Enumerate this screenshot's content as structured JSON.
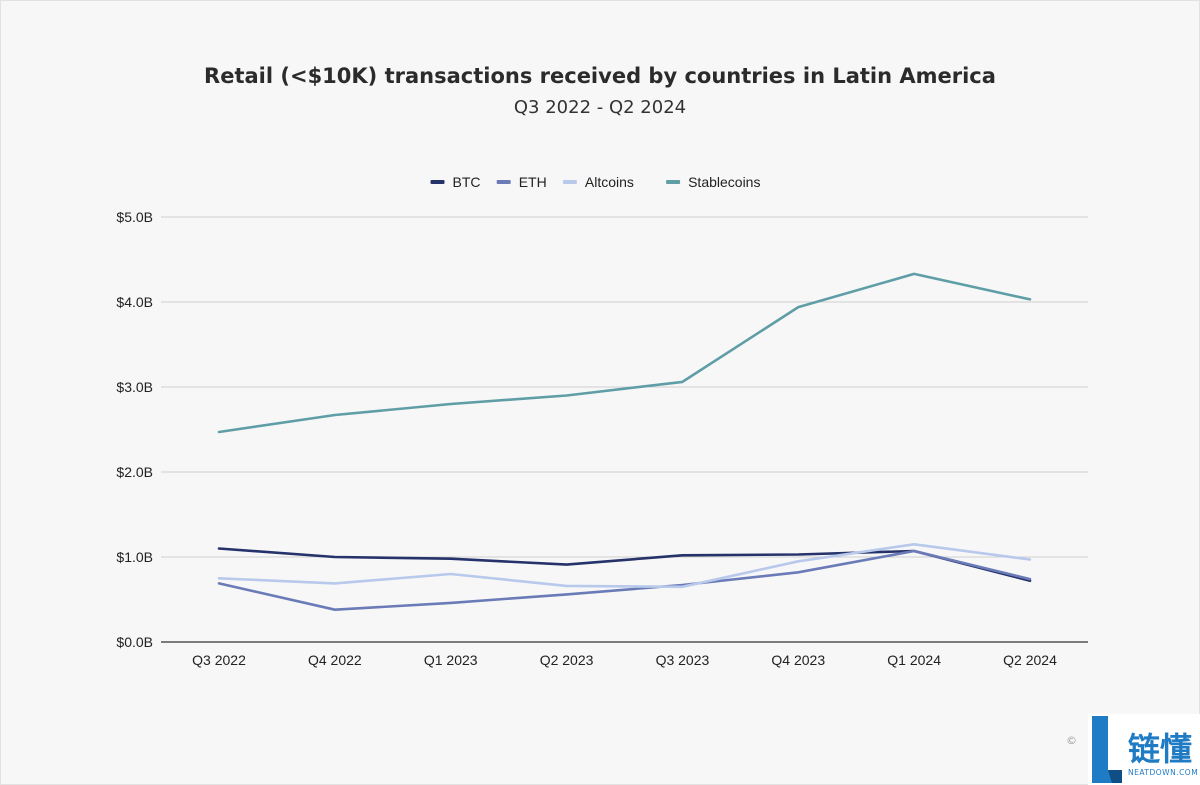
{
  "chart_data": {
    "type": "line",
    "title": "Retail (<$10K) transactions received by countries in Latin America",
    "subtitle": "Q3 2022 - Q2 2024",
    "categories": [
      "Q3 2022",
      "Q4 2022",
      "Q1 2023",
      "Q2 2023",
      "Q3 2023",
      "Q4 2023",
      "Q1 2024",
      "Q2 2024"
    ],
    "yaxis": {
      "min": 0,
      "max": 5,
      "ticks": [
        0,
        1,
        2,
        3,
        4,
        5
      ],
      "tick_labels": [
        "$0.0B",
        "$1.0B",
        "$2.0B",
        "$3.0B",
        "$4.0B",
        "$5.0B"
      ],
      "unit": "$B"
    },
    "grid": true,
    "legend_position": "top-center",
    "series": [
      {
        "name": "BTC",
        "color": "#26336b",
        "values": [
          1.1,
          1.0,
          0.98,
          0.91,
          1.02,
          1.03,
          1.07,
          0.72
        ]
      },
      {
        "name": "ETH",
        "color": "#6a7bb8",
        "values": [
          0.69,
          0.38,
          0.46,
          0.56,
          0.67,
          0.82,
          1.07,
          0.74
        ]
      },
      {
        "name": "Altcoins",
        "color": "#b8c9ec",
        "values": [
          0.75,
          0.69,
          0.8,
          0.66,
          0.65,
          0.95,
          1.15,
          0.97
        ]
      },
      {
        "name": "Stablecoins",
        "color": "#5f9ea6",
        "values": [
          2.47,
          2.67,
          2.8,
          2.9,
          3.06,
          3.94,
          4.33,
          4.03
        ]
      }
    ]
  },
  "watermark": {
    "copyright_symbol": "©",
    "logo_text": "链懂",
    "logo_subtext": "NEATDOWN.COM",
    "logo_color": "#1f7bc4"
  }
}
